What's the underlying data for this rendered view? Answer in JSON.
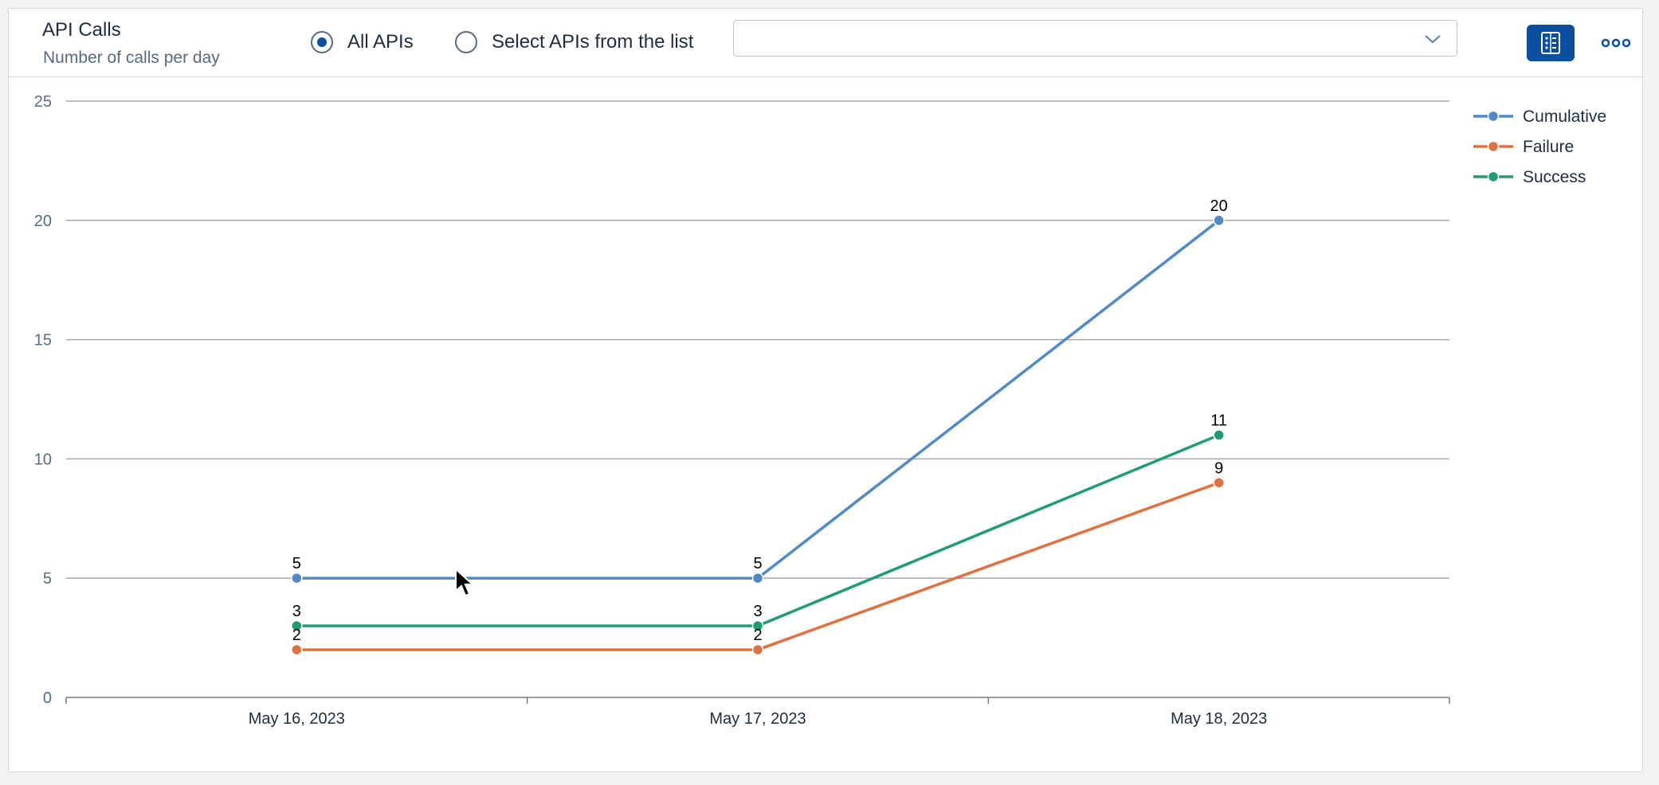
{
  "header": {
    "title": "API Calls",
    "subtitle": "Number of calls per day"
  },
  "filters": {
    "option_all": "All APIs",
    "option_select": "Select APIs from the list",
    "selected": "all",
    "api_select_value": ""
  },
  "colors": {
    "accent": "#0a4fa0",
    "cumulative": "#5089c6",
    "failure": "#e07040",
    "success": "#1f9c72"
  },
  "icons": {
    "view_toggle": "table-view-icon",
    "more": "more-options-icon",
    "dropdown": "chevron-down-icon"
  },
  "chart_data": {
    "type": "line",
    "categories": [
      "May 16, 2023",
      "May 17, 2023",
      "May 18, 2023"
    ],
    "series": [
      {
        "name": "Cumulative",
        "values": [
          5,
          5,
          20
        ],
        "color": "#5089c6"
      },
      {
        "name": "Failure",
        "values": [
          2,
          2,
          9
        ],
        "color": "#e07040"
      },
      {
        "name": "Success",
        "values": [
          3,
          3,
          11
        ],
        "color": "#1f9c72"
      }
    ],
    "ylim": [
      0,
      25
    ],
    "yticks": [
      0,
      5,
      10,
      15,
      20,
      25
    ],
    "grid": true,
    "legend_position": "top-right",
    "data_labels": true
  }
}
